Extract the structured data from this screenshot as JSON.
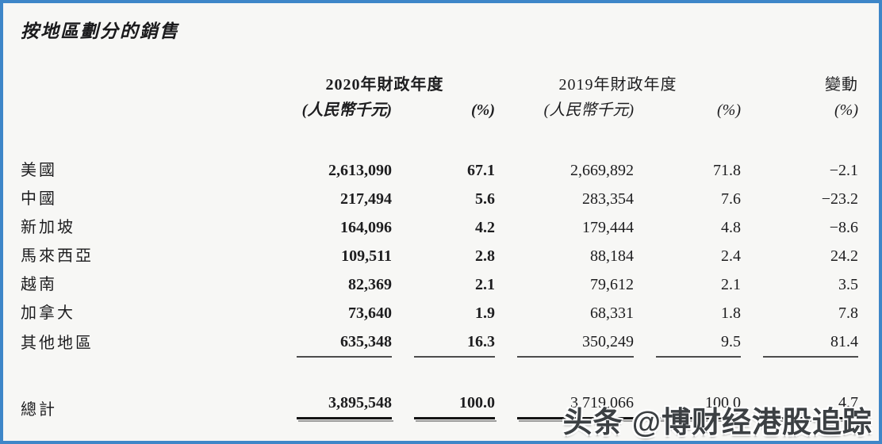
{
  "page": {
    "title": "按地區劃分的銷售",
    "colors": {
      "frame": "#3e86c8",
      "background": "#f7f7f5",
      "text": "#1d1d1f"
    }
  },
  "table": {
    "header": {
      "fy2020": "2020年財政年度",
      "fy2019": "2019年財政年度",
      "change": "變動",
      "currency_unit": "(人民幣千元)",
      "percent_unit": "(%)"
    },
    "rows": [
      {
        "region": "美國",
        "fy2020_value": "2,613,090",
        "fy2020_pct": "67.1",
        "fy2019_value": "2,669,892",
        "fy2019_pct": "71.8",
        "change_pct": "−2.1"
      },
      {
        "region": "中國",
        "fy2020_value": "217,494",
        "fy2020_pct": "5.6",
        "fy2019_value": "283,354",
        "fy2019_pct": "7.6",
        "change_pct": "−23.2"
      },
      {
        "region": "新加坡",
        "fy2020_value": "164,096",
        "fy2020_pct": "4.2",
        "fy2019_value": "179,444",
        "fy2019_pct": "4.8",
        "change_pct": "−8.6"
      },
      {
        "region": "馬來西亞",
        "fy2020_value": "109,511",
        "fy2020_pct": "2.8",
        "fy2019_value": "88,184",
        "fy2019_pct": "2.4",
        "change_pct": "24.2"
      },
      {
        "region": "越南",
        "fy2020_value": "82,369",
        "fy2020_pct": "2.1",
        "fy2019_value": "79,612",
        "fy2019_pct": "2.1",
        "change_pct": "3.5"
      },
      {
        "region": "加拿大",
        "fy2020_value": "73,640",
        "fy2020_pct": "1.9",
        "fy2019_value": "68,331",
        "fy2019_pct": "1.8",
        "change_pct": "7.8"
      },
      {
        "region": "其他地區",
        "fy2020_value": "635,348",
        "fy2020_pct": "16.3",
        "fy2019_value": "350,249",
        "fy2019_pct": "9.5",
        "change_pct": "81.4"
      }
    ],
    "total": {
      "label": "總計",
      "fy2020_value": "3,895,548",
      "fy2020_pct": "100.0",
      "fy2019_value": "3,719,066",
      "fy2019_pct": "100.0",
      "change_pct": "4.7"
    }
  },
  "watermark": {
    "text": "头条 @博财经港股追踪"
  }
}
